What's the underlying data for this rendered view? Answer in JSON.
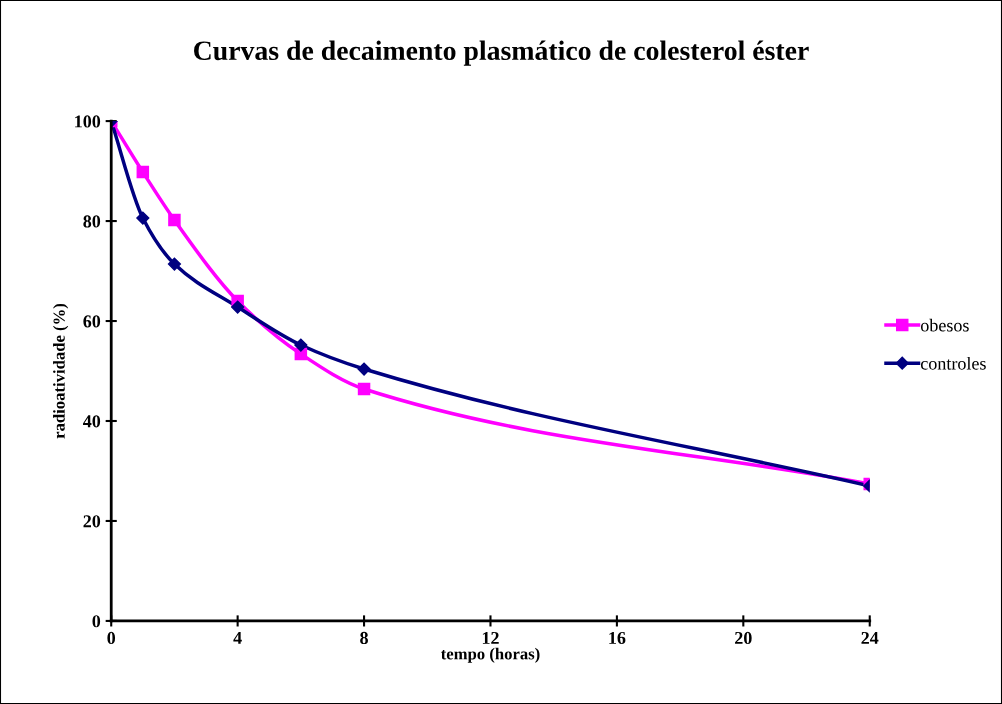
{
  "chart_data": {
    "type": "line",
    "title": "Curvas de decaimento plasmático de colesterol éster",
    "xlabel": "tempo (horas)",
    "ylabel": "radioatividade (%)",
    "x": [
      0,
      1,
      2,
      4,
      6,
      8,
      24
    ],
    "series": [
      {
        "name": "obesos",
        "color": "#ff00ff",
        "marker": "square",
        "values": [
          100,
          89.8,
          80.2,
          64,
          53.4,
          46.4,
          27.4
        ]
      },
      {
        "name": "controles",
        "color": "#000080",
        "marker": "diamond",
        "values": [
          100,
          80.6,
          71.4,
          62.8,
          55.2,
          50.4,
          27
        ]
      }
    ],
    "xlim": [
      0,
      24
    ],
    "xticks": [
      0,
      4,
      8,
      12,
      16,
      20,
      24
    ],
    "ylim": [
      0,
      100
    ],
    "yticks": [
      0,
      20,
      40,
      60,
      80,
      100
    ],
    "grid": false,
    "legend": "right",
    "line_style": "solid"
  }
}
